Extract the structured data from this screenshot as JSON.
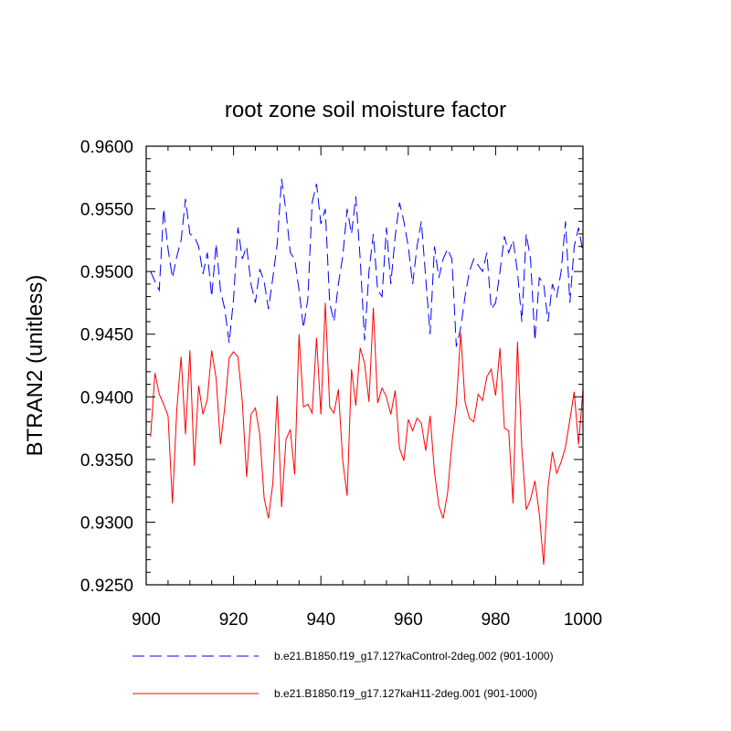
{
  "chart_data": {
    "type": "line",
    "title": "root zone soil moisture factor",
    "xlabel": "",
    "ylabel": "BTRAN2  (unitless)",
    "xlim": [
      900,
      1000
    ],
    "ylim": [
      0.925,
      0.96
    ],
    "xticks": [
      900,
      920,
      940,
      960,
      980,
      1000
    ],
    "xtick_labels": [
      "900",
      "920",
      "940",
      "960",
      "980",
      "1000"
    ],
    "yticks": [
      0.925,
      0.93,
      0.935,
      0.94,
      0.945,
      0.95,
      0.955,
      0.96
    ],
    "ytick_labels": [
      "0.9250",
      "0.9300",
      "0.9350",
      "0.9400",
      "0.9450",
      "0.9500",
      "0.9550",
      "0.9600"
    ],
    "grid": false,
    "legend_position": "bottom",
    "x": [
      901,
      902,
      903,
      904,
      905,
      906,
      907,
      908,
      909,
      910,
      911,
      912,
      913,
      914,
      915,
      916,
      917,
      918,
      919,
      920,
      921,
      922,
      923,
      924,
      925,
      926,
      927,
      928,
      929,
      930,
      931,
      932,
      933,
      934,
      935,
      936,
      937,
      938,
      939,
      940,
      941,
      942,
      943,
      944,
      945,
      946,
      947,
      948,
      949,
      950,
      951,
      952,
      953,
      954,
      955,
      956,
      957,
      958,
      959,
      960,
      961,
      962,
      963,
      964,
      965,
      966,
      967,
      968,
      969,
      970,
      971,
      972,
      973,
      974,
      975,
      976,
      977,
      978,
      979,
      980,
      981,
      982,
      983,
      984,
      985,
      986,
      987,
      988,
      989,
      990,
      991,
      992,
      993,
      994,
      995,
      996,
      997,
      998,
      999,
      1000
    ],
    "series": [
      {
        "name": "b.e21.B1850.f19_g17.127kaControl-2deg.002 (901-1000)",
        "color": "#0000ff",
        "dash": "dashed",
        "values": [
          0.95,
          0.9492,
          0.9485,
          0.955,
          0.9518,
          0.9495,
          0.9512,
          0.9525,
          0.9558,
          0.953,
          0.9528,
          0.952,
          0.9498,
          0.9515,
          0.948,
          0.9522,
          0.9485,
          0.947,
          0.9443,
          0.9478,
          0.9535,
          0.951,
          0.952,
          0.949,
          0.9475,
          0.9502,
          0.9492,
          0.947,
          0.9495,
          0.9522,
          0.9574,
          0.9548,
          0.9515,
          0.951,
          0.9485,
          0.9455,
          0.9478,
          0.9555,
          0.957,
          0.9538,
          0.955,
          0.9475,
          0.946,
          0.949,
          0.9512,
          0.955,
          0.953,
          0.956,
          0.951,
          0.9445,
          0.95,
          0.953,
          0.9485,
          0.948,
          0.9535,
          0.949,
          0.9528,
          0.9555,
          0.954,
          0.952,
          0.949,
          0.952,
          0.954,
          0.9495,
          0.945,
          0.952,
          0.9495,
          0.951,
          0.9518,
          0.951,
          0.944,
          0.9455,
          0.948,
          0.95,
          0.951,
          0.9505,
          0.95,
          0.9515,
          0.947,
          0.9475,
          0.95,
          0.9528,
          0.9515,
          0.9525,
          0.95,
          0.946,
          0.953,
          0.951,
          0.9445,
          0.9495,
          0.949,
          0.946,
          0.949,
          0.948,
          0.95,
          0.954,
          0.9475,
          0.952,
          0.9535,
          0.9515
        ]
      },
      {
        "name": "b.e21.B1850.f19_g17.127kaH11-2deg.001 (901-1000)",
        "color": "#ff0000",
        "dash": "solid",
        "values": [
          0.9368,
          0.9419,
          0.9402,
          0.9394,
          0.9385,
          0.9315,
          0.939,
          0.9432,
          0.937,
          0.9437,
          0.9345,
          0.9409,
          0.9386,
          0.9398,
          0.9437,
          0.9415,
          0.9362,
          0.9392,
          0.9431,
          0.9436,
          0.9432,
          0.9396,
          0.9336,
          0.9386,
          0.9391,
          0.937,
          0.9319,
          0.9303,
          0.9331,
          0.9401,
          0.9312,
          0.9366,
          0.9374,
          0.9338,
          0.945,
          0.9392,
          0.9394,
          0.9387,
          0.9447,
          0.9386,
          0.9475,
          0.9392,
          0.9387,
          0.9406,
          0.9349,
          0.9321,
          0.9422,
          0.9393,
          0.9439,
          0.9427,
          0.9396,
          0.9471,
          0.9395,
          0.9407,
          0.94,
          0.9386,
          0.9405,
          0.9359,
          0.9349,
          0.9382,
          0.9373,
          0.9383,
          0.9379,
          0.9357,
          0.9385,
          0.934,
          0.9313,
          0.9303,
          0.9323,
          0.9363,
          0.9394,
          0.9451,
          0.9396,
          0.9383,
          0.938,
          0.9402,
          0.9397,
          0.9416,
          0.9422,
          0.9401,
          0.9439,
          0.9375,
          0.9373,
          0.9315,
          0.9444,
          0.9359,
          0.931,
          0.9318,
          0.9333,
          0.9307,
          0.9266,
          0.9328,
          0.9356,
          0.9339,
          0.9348,
          0.936,
          0.9382,
          0.9404,
          0.9362,
          0.9406
        ]
      }
    ]
  }
}
